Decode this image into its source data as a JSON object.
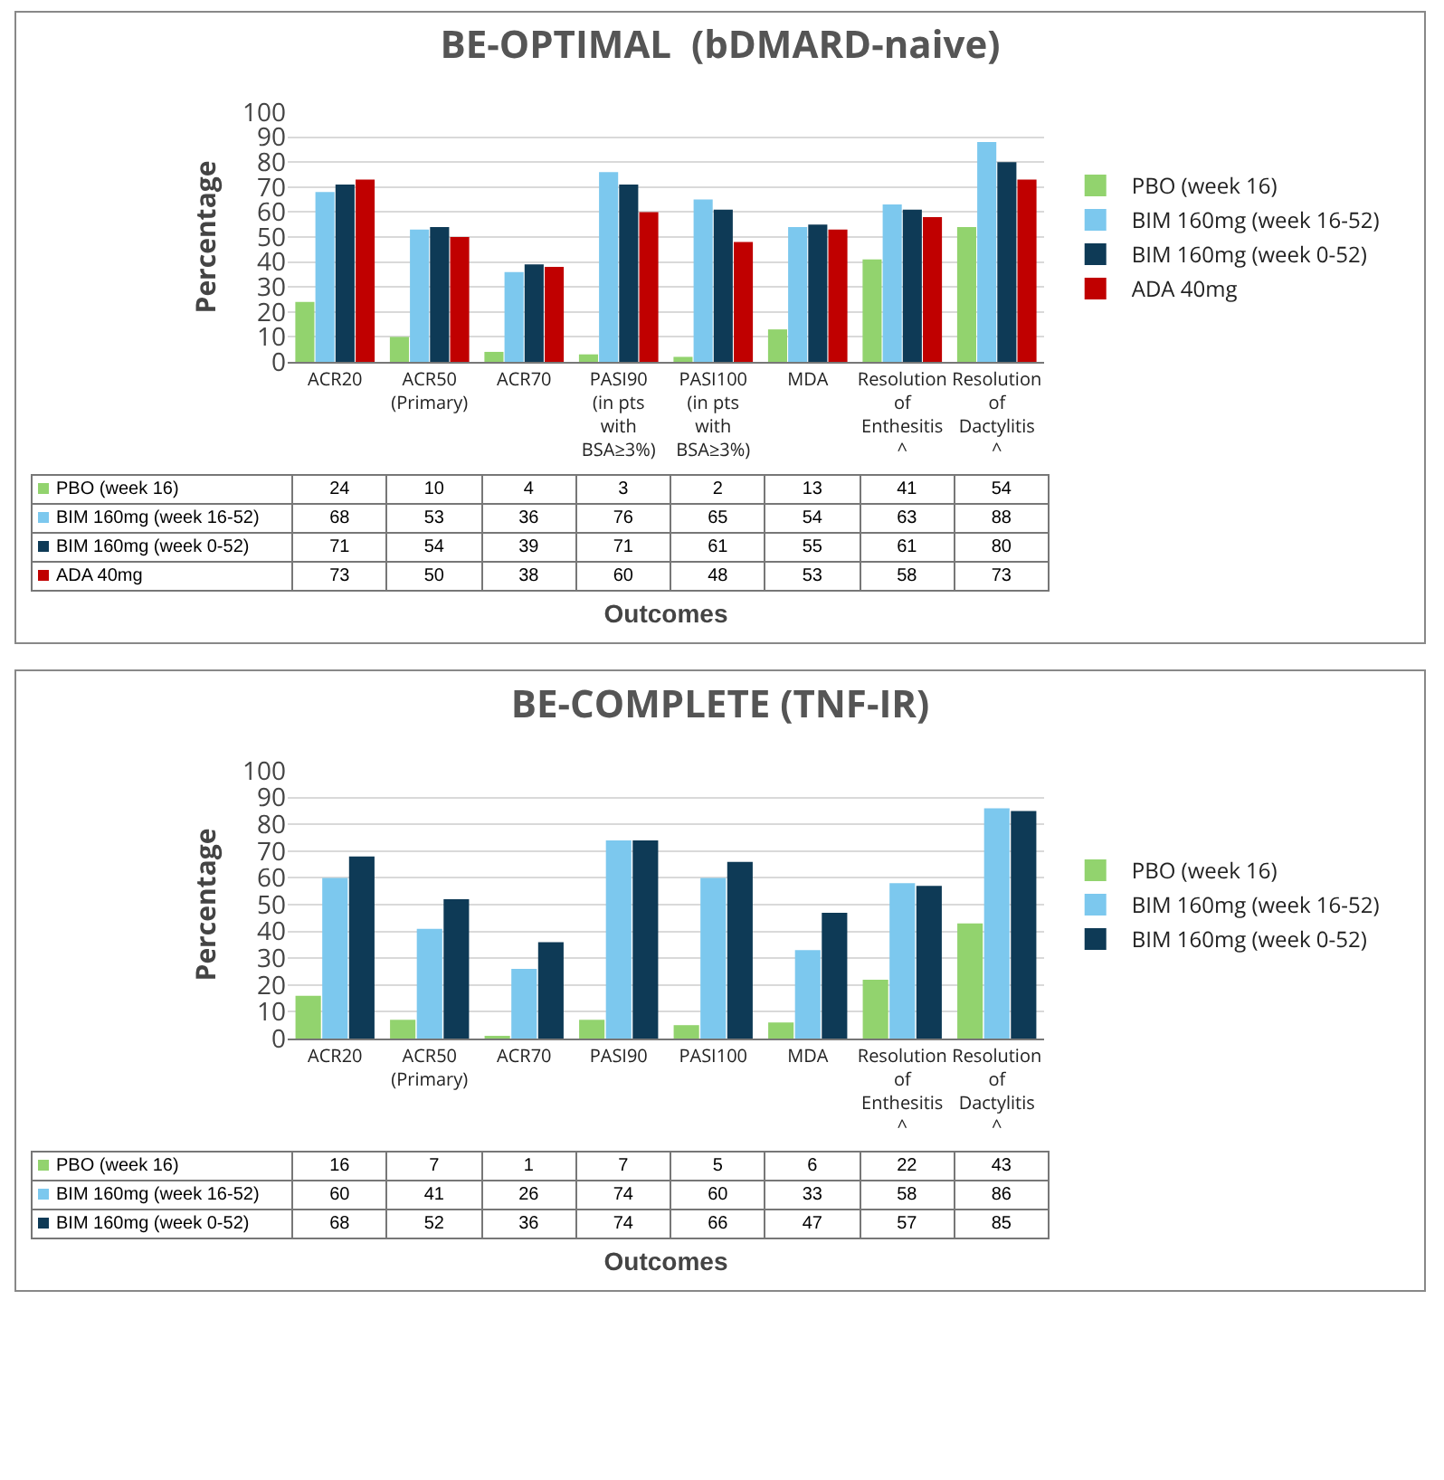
{
  "chart_data": [
    {
      "type": "bar",
      "title": "BE-OPTIMAL  (bDMARD-naive)",
      "xlabel": "Outcomes",
      "ylabel": "Percentage",
      "categories": [
        "ACR20",
        "ACR50 (Primary)",
        "ACR70",
        "PASI90 (in pts with BSA≥3%)",
        "PASI100 (in pts with BSA≥3%)",
        "MDA",
        "Resolution of Enthesitis ^",
        "Resolution of Dactylitis ^"
      ],
      "series": [
        {
          "name": "PBO (week 16)",
          "color": "#92d36e",
          "values": [
            24,
            10,
            4,
            3,
            2,
            13,
            41,
            54
          ]
        },
        {
          "name": "BIM 160mg (week 16-52)",
          "color": "#7cc8ee",
          "values": [
            68,
            53,
            36,
            76,
            65,
            54,
            63,
            88
          ]
        },
        {
          "name": "BIM 160mg (week 0-52)",
          "color": "#0e3a56",
          "values": [
            71,
            54,
            39,
            71,
            61,
            55,
            61,
            80
          ]
        },
        {
          "name": "ADA 40mg",
          "color": "#c00000",
          "values": [
            73,
            50,
            38,
            60,
            48,
            53,
            58,
            73
          ]
        }
      ],
      "ylim": [
        0,
        100
      ],
      "yticks": [
        0,
        10,
        20,
        30,
        40,
        50,
        60,
        70,
        80,
        90,
        100
      ],
      "grid": "y",
      "legend": "right",
      "data_labels": true
    },
    {
      "type": "bar",
      "title": "BE-COMPLETE (TNF-IR)",
      "xlabel": "Outcomes",
      "ylabel": "Percentage",
      "categories": [
        "ACR20",
        "ACR50 (Primary)",
        "ACR70",
        "PASI90",
        "PASI100",
        "MDA",
        "Resolution of Enthesitis ^",
        "Resolution of Dactylitis ^"
      ],
      "series": [
        {
          "name": "PBO (week 16)",
          "color": "#92d36e",
          "values": [
            16,
            7,
            1,
            7,
            5,
            6,
            22,
            43
          ]
        },
        {
          "name": "BIM 160mg (week 16-52)",
          "color": "#7cc8ee",
          "values": [
            60,
            41,
            26,
            74,
            60,
            33,
            58,
            86
          ]
        },
        {
          "name": "BIM 160mg (week 0-52)",
          "color": "#0e3a56",
          "values": [
            68,
            52,
            36,
            74,
            66,
            47,
            57,
            85
          ]
        }
      ],
      "ylim": [
        0,
        100
      ],
      "yticks": [
        0,
        10,
        20,
        30,
        40,
        50,
        60,
        70,
        80,
        90,
        100
      ],
      "grid": "y",
      "legend": "right",
      "data_labels": true
    }
  ]
}
